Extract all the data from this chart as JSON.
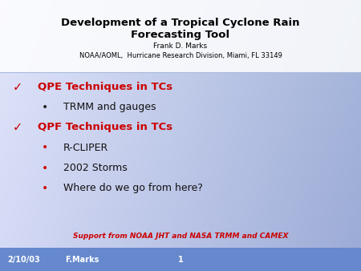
{
  "title_line1": "Development of a Tropical Cyclone Rain",
  "title_line2": "Forecasting Tool",
  "author": "Frank D. Marks",
  "affiliation": "NOAA/AOML,  Hurricane Research Division, Miami, FL 33149",
  "red_color": "#cc0000",
  "footer_text": "Support from NOAA JHT and NASA TRMM and CAMEX",
  "footer_color": "#cc0000",
  "date_label": "2/10/03",
  "author_label": "F.Marks",
  "page_number": "1",
  "bottom_bar_color": "#6688cc",
  "checkmark_items": [
    "QPE Techniques in TCs",
    "QPF Techniques in TCs"
  ],
  "bullet_items_after_qpe": [
    "TRMM and gauges"
  ],
  "bullet_items_after_qpf": [
    "R-CLIPER",
    "2002 Storms",
    "Where do we go from here?"
  ],
  "bg_left": "#d0dcf0",
  "bg_right": "#8899cc",
  "header_bg": "#f0f4ff",
  "title_fontsize": 9.5,
  "author_fontsize": 6.5,
  "affil_fontsize": 6.0,
  "check_fontsize": 10.5,
  "check_label_fontsize": 9.5,
  "bullet1_fontsize": 9.0,
  "bullet2_fontsize": 9.0,
  "footer_fontsize": 6.5,
  "bar_fontsize": 7.0
}
